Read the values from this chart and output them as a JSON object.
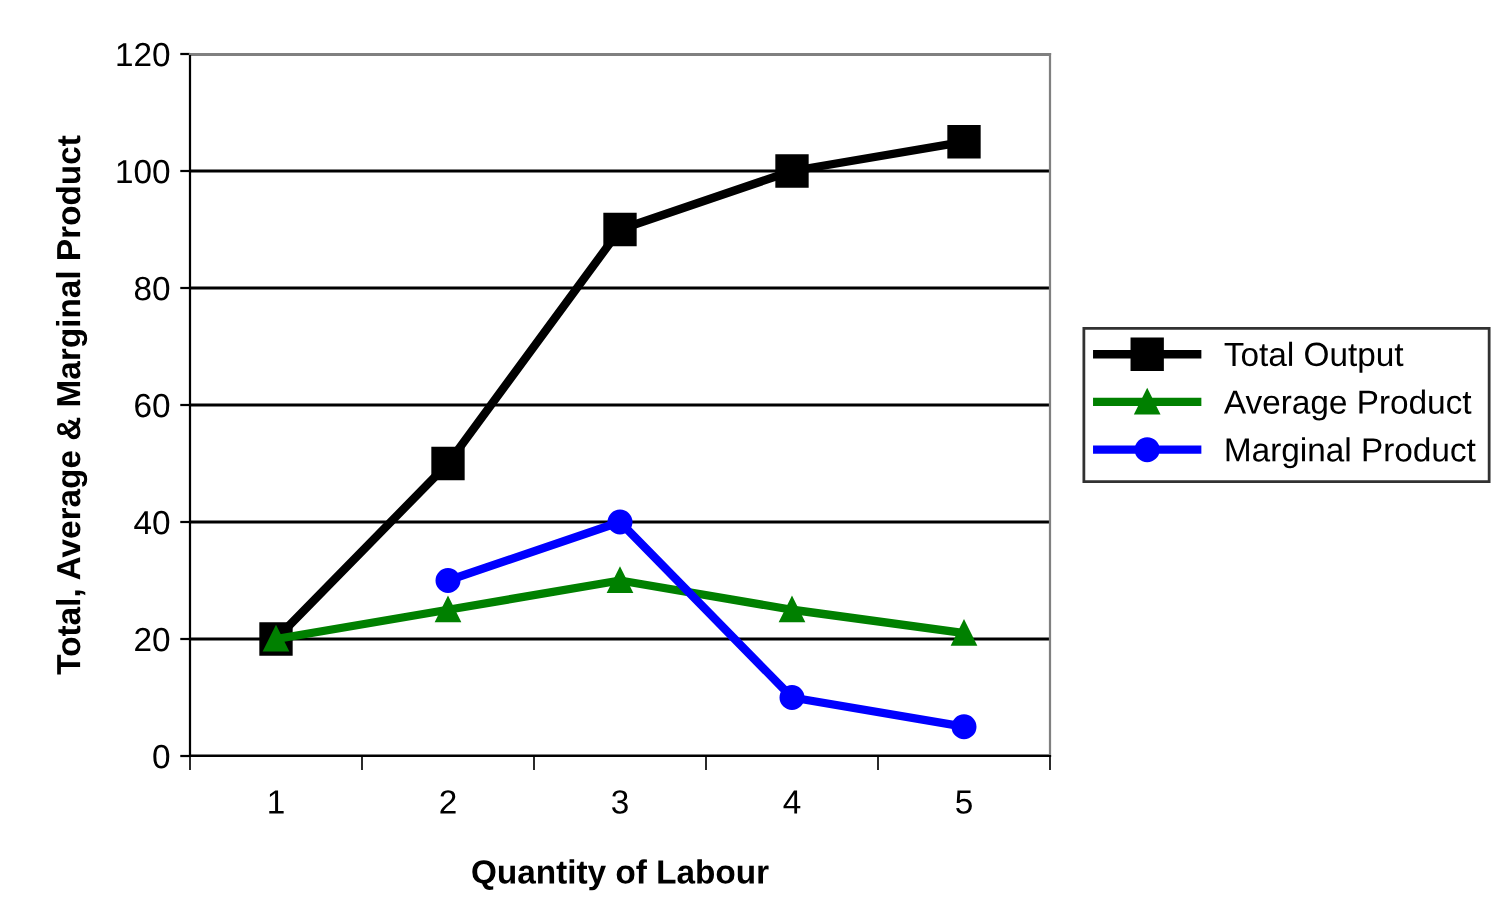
{
  "chart_data": {
    "type": "line",
    "xlabel": "Quantity of Labour",
    "ylabel": "Total, Average & Marginal Product",
    "categories": [
      "1",
      "2",
      "3",
      "4",
      "5"
    ],
    "series": [
      {
        "name": "Total Output",
        "color": "#000000",
        "marker": "square",
        "values": [
          20,
          50,
          90,
          100,
          105
        ]
      },
      {
        "name": "Average Product",
        "color": "#008000",
        "marker": "triangle",
        "values": [
          20,
          25,
          30,
          25,
          21
        ]
      },
      {
        "name": "Marginal Product",
        "color": "#0000ff",
        "marker": "circle",
        "values": [
          null,
          30,
          40,
          10,
          5
        ]
      }
    ],
    "ylim": [
      0,
      120
    ],
    "yticks": [
      0,
      20,
      40,
      60,
      80,
      100,
      120
    ],
    "grid": "y",
    "legend": "right",
    "line_style": "solid"
  }
}
